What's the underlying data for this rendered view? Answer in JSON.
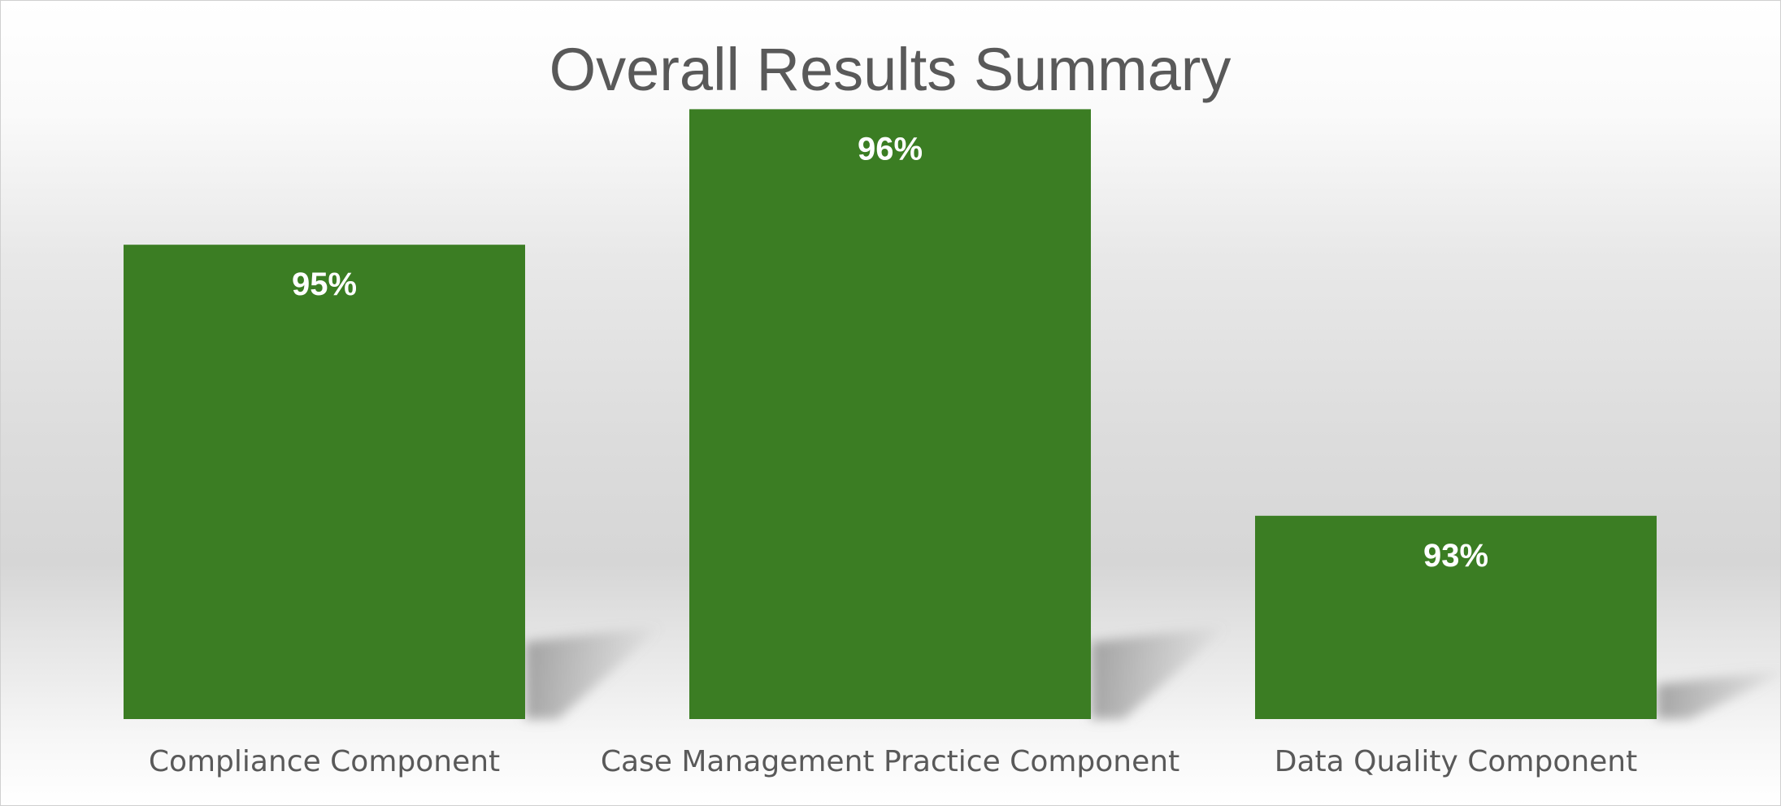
{
  "chart_data": {
    "type": "bar",
    "title": "Overall Results Summary",
    "xlabel": "",
    "ylabel": "",
    "categories": [
      "Compliance Component",
      "Case Management Practice Component",
      "Data Quality Component"
    ],
    "values": [
      95,
      96,
      93
    ],
    "data_labels": [
      "95%",
      "96%",
      "93%"
    ],
    "ylim": [
      91.5,
      96.5
    ],
    "grid": false,
    "legend": "none",
    "bar_color": "#3B7D23",
    "shadow_color": "#8c8c8c"
  }
}
